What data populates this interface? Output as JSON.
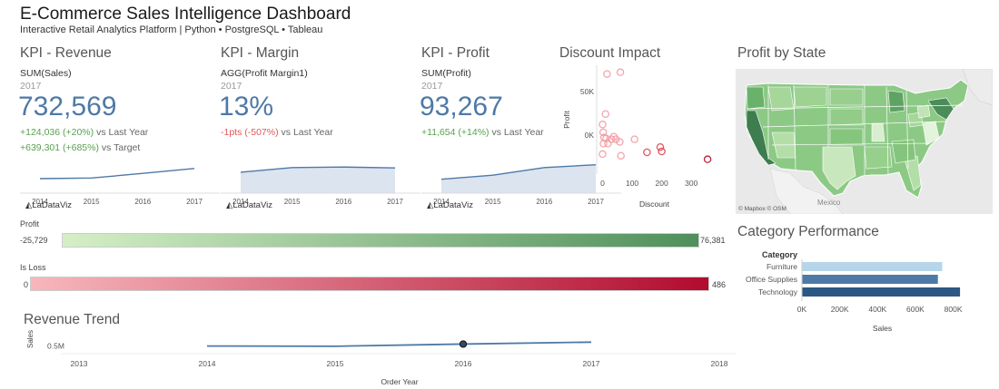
{
  "header": {
    "title": "E-Commerce Sales Intelligence Dashboard",
    "subtitle": "Interactive Retail Analytics Platform | Python • PostgreSQL • Tableau"
  },
  "kpis": [
    {
      "title": "KPI - Revenue",
      "measure": "SUM(Sales)",
      "year": "2017",
      "value": "732,569",
      "delta1_val": "+124,036 (+20%)",
      "delta1_txt": " vs Last Year",
      "delta2_val": "+639,301 (+685%)",
      "delta2_txt": " vs Target",
      "spark_years": [
        "2014",
        "2015",
        "2016",
        "2017"
      ],
      "spark_values": [
        0.5,
        0.52,
        0.68,
        0.85
      ],
      "logo": "LaDataViz"
    },
    {
      "title": "KPI - Margin",
      "measure": "AGG(Profit Margin1)",
      "year": "2017",
      "value": "13%",
      "delta1_val": "-1pts (-507%)",
      "delta1_txt": " vs Last Year",
      "spark_years": [
        "2014",
        "2015",
        "2016",
        "2017"
      ],
      "spark_values": [
        0.72,
        0.88,
        0.9,
        0.87
      ],
      "logo": "LaDataViz"
    },
    {
      "title": "KPI - Profit",
      "measure": "SUM(Profit)",
      "year": "2017",
      "value": "93,267",
      "delta1_val": "+11,654 (+14%)",
      "delta1_txt": " vs Last Year",
      "spark_years": [
        "2014",
        "2015",
        "2016",
        "2017"
      ],
      "spark_values": [
        0.48,
        0.62,
        0.88,
        0.98
      ],
      "logo": "LaDataViz"
    }
  ],
  "discount": {
    "title": "Discount Impact",
    "xlabel": "Discount",
    "ylabel": "Profit",
    "x_ticks": [
      "0",
      "100",
      "200",
      "300"
    ],
    "y_ticks": [
      "50K",
      "0K"
    ]
  },
  "map": {
    "title": "Profit by State",
    "attribution": "© Mapbox  © OSM",
    "country_label": "Mexico"
  },
  "legends": {
    "profit_label": "Profit",
    "profit_min": "-25,729",
    "profit_max": "76,381",
    "loss_label": "Is Loss",
    "loss_min": "0",
    "loss_max": "486",
    "profit_colors": [
      "#d5efc7",
      "#4f8f5b"
    ],
    "loss_colors": [
      "#f7b7bd",
      "#b10b2e"
    ]
  },
  "category": {
    "title": "Category Performance",
    "header": "Category",
    "xlabel": "Sales",
    "x_ticks": [
      "0K",
      "200K",
      "400K",
      "600K",
      "800K"
    ]
  },
  "trend": {
    "title": "Revenue Trend",
    "ylabel": "Sales",
    "y_tick": "0.5M",
    "xlabel": "Order Year",
    "x_ticks": [
      "2013",
      "2014",
      "2015",
      "2016",
      "2017",
      "2018"
    ]
  },
  "chart_data": [
    {
      "type": "scatter",
      "title": "Discount Impact",
      "xlabel": "Discount",
      "ylabel": "Profit",
      "xlim": [
        -20,
        370
      ],
      "ylim": [
        -45000,
        80000
      ],
      "points": [
        {
          "x": 60,
          "y": 72000,
          "profit": 2000
        },
        {
          "x": 15,
          "y": 70000,
          "profit": 2000
        },
        {
          "x": 10,
          "y": 24000,
          "profit": 1000
        },
        {
          "x": 0,
          "y": 12000,
          "profit": 1000
        },
        {
          "x": 2,
          "y": 3000,
          "profit": 0
        },
        {
          "x": 5,
          "y": -3000,
          "profit": 0
        },
        {
          "x": 3,
          "y": -10000,
          "profit": 0
        },
        {
          "x": 0,
          "y": -22000,
          "profit": 0
        },
        {
          "x": 12,
          "y": -4000,
          "profit": 0
        },
        {
          "x": 30,
          "y": -5000,
          "profit": 0
        },
        {
          "x": 38,
          "y": -2000,
          "profit": 0
        },
        {
          "x": 45,
          "y": -5000,
          "profit": 0
        },
        {
          "x": 58,
          "y": -8000,
          "profit": 0
        },
        {
          "x": 62,
          "y": -24000,
          "profit": -1000
        },
        {
          "x": 18,
          "y": -10000,
          "profit": 0
        },
        {
          "x": 108,
          "y": -5000,
          "profit": 0
        },
        {
          "x": 150,
          "y": -20000,
          "profit": -3000
        },
        {
          "x": 195,
          "y": -14000,
          "profit": -4000
        },
        {
          "x": 200,
          "y": -19000,
          "profit": -5000
        },
        {
          "x": 355,
          "y": -28000,
          "profit": -25000
        }
      ]
    },
    {
      "type": "bar",
      "title": "Category Performance",
      "xlabel": "Sales",
      "categories": [
        "Furniture",
        "Office Supplies",
        "Technology"
      ],
      "values": [
        742000,
        719000,
        836000
      ],
      "colors": [
        "#b7d5ea",
        "#4e79a7",
        "#2c5784"
      ],
      "xlim": [
        0,
        850000
      ]
    },
    {
      "type": "line",
      "title": "Revenue Trend",
      "xlabel": "Order Year",
      "ylabel": "Sales",
      "x": [
        2014,
        2015,
        2016,
        2017
      ],
      "values": [
        484000,
        470000,
        609000,
        733000
      ],
      "highlight": 2016,
      "xlim": [
        2013,
        2018
      ],
      "ylim": [
        0,
        1500000
      ]
    }
  ]
}
